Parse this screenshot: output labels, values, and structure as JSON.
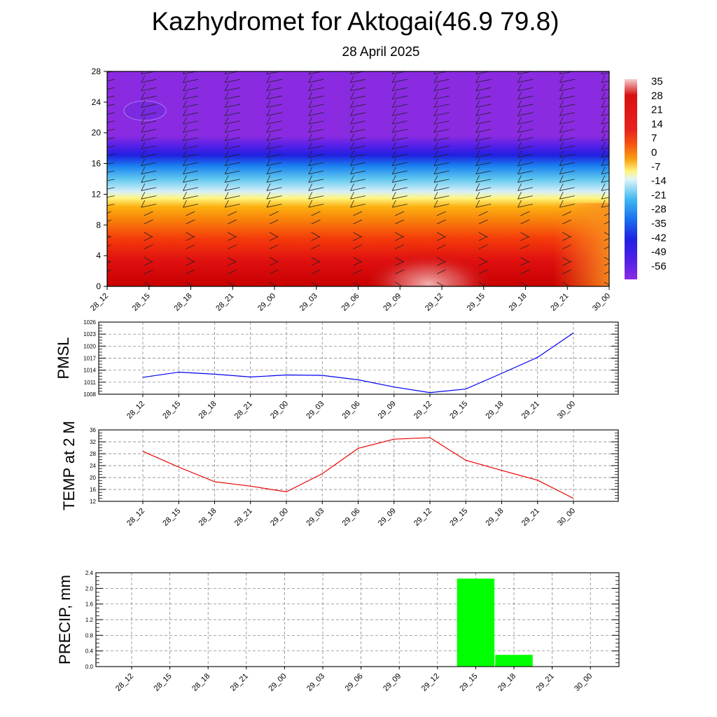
{
  "header": {
    "title": "Kazhydromet for Aktogai(46.9 79.8)",
    "subtitle": "28 April 2025"
  },
  "colors": {
    "pmsl_line": "#0000ee",
    "temp_line": "#ee0000",
    "precip_bar": "#00ff00",
    "colorbar_top": "#f2c8c8",
    "colorbar_warm": "#d40000",
    "colorbar_neutral": "#fff9c0",
    "colorbar_cold": "#8a2be2"
  },
  "chart_data": [
    {
      "id": "cross_section",
      "type": "heatmap",
      "x_ticks": [
        "28_12",
        "28_15",
        "28_18",
        "28_21",
        "29_00",
        "29_03",
        "29_06",
        "29_09",
        "29_12",
        "29_15",
        "29_18",
        "29_21",
        "30_00"
      ],
      "y_ticks": [
        0,
        4,
        8,
        12,
        16,
        20,
        24,
        28
      ],
      "ylim": [
        0,
        28
      ],
      "colorbar_labels": [
        "35",
        "28",
        "21",
        "14",
        "7",
        "0",
        "-7",
        "-14",
        "-21",
        "-28",
        "-35",
        "-42",
        "-49",
        "-56"
      ],
      "colorbar_range": [
        -56,
        35
      ],
      "overlay": "wind barbs"
    },
    {
      "id": "pmsl",
      "type": "line",
      "ylabel": "PMSL",
      "categories": [
        "28_12",
        "28_15",
        "28_18",
        "28_21",
        "29_00",
        "29_03",
        "29_06",
        "29_09",
        "29_12",
        "29_15",
        "29_18",
        "29_21",
        "30_00"
      ],
      "values": [
        1012.2,
        1013.5,
        1013.0,
        1012.3,
        1012.8,
        1012.7,
        1011.6,
        1009.8,
        1008.4,
        1009.3,
        1013.2,
        1017.2,
        1023.3
      ],
      "y_ticks": [
        1008,
        1011,
        1014,
        1017,
        1020,
        1023,
        1026
      ],
      "ylim": [
        1008,
        1026
      ],
      "grid": true
    },
    {
      "id": "temp",
      "type": "line",
      "ylabel": "TEMP at 2 M",
      "categories": [
        "28_12",
        "28_15",
        "28_18",
        "28_21",
        "29_00",
        "29_03",
        "29_06",
        "29_09",
        "29_12",
        "29_15",
        "29_18",
        "29_21",
        "30_00"
      ],
      "values": [
        28.8,
        23.5,
        18.6,
        17.1,
        15.2,
        21.3,
        29.8,
        32.9,
        33.4,
        25.8,
        22.4,
        19.1,
        13.0
      ],
      "y_ticks": [
        12,
        16,
        20,
        24,
        28,
        32,
        36
      ],
      "ylim": [
        12,
        36
      ],
      "grid": true
    },
    {
      "id": "precip",
      "type": "bar",
      "ylabel": "PRECIP, mm",
      "categories": [
        "28_12",
        "28_15",
        "28_18",
        "28_21",
        "29_00",
        "29_03",
        "29_06",
        "29_09",
        "29_12",
        "29_15",
        "29_18",
        "29_21",
        "30_00"
      ],
      "values": [
        0,
        0,
        0,
        0,
        0,
        0,
        0,
        0,
        0,
        2.25,
        0.3,
        0,
        0
      ],
      "y_ticks": [
        "0.0",
        "0.4",
        "0.8",
        "1.2",
        "1.6",
        "2.0",
        "2.4"
      ],
      "ylim": [
        0,
        2.4
      ],
      "grid": true
    }
  ]
}
